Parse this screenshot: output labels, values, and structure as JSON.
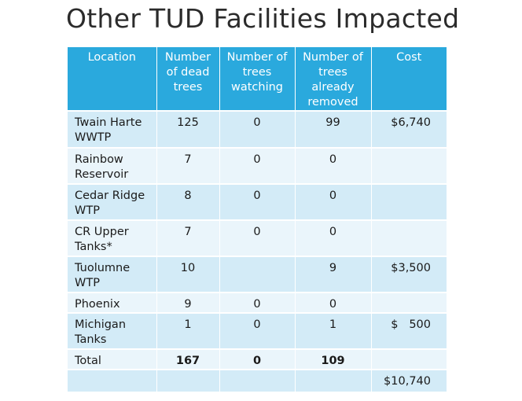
{
  "title": "Other TUD Facilities Impacted",
  "headers": [
    "Location",
    "Number of dead trees",
    "Number of trees watching",
    "Number of trees already removed",
    "Cost"
  ],
  "rows": [
    {
      "location": "Twain Harte WWTP",
      "dead": "125",
      "watching": "0",
      "removed": "99",
      "cost": "$6,740"
    },
    {
      "location": "Rainbow Reservoir",
      "dead": "7",
      "watching": "0",
      "removed": "0",
      "cost": ""
    },
    {
      "location": "Cedar Ridge WTP",
      "dead": "8",
      "watching": "0",
      "removed": "0",
      "cost": ""
    },
    {
      "location": "CR Upper Tanks*",
      "dead": "7",
      "watching": "0",
      "removed": "0",
      "cost": ""
    },
    {
      "location": "Tuolumne WTP",
      "dead": "10",
      "watching": "",
      "removed": "9",
      "cost": "$3,500"
    },
    {
      "location": "Phoenix",
      "dead": "9",
      "watching": "0",
      "removed": "0",
      "cost": ""
    },
    {
      "location": "Michigan Tanks",
      "dead": "1",
      "watching": "0",
      "removed": "1",
      "cost": "$   500"
    },
    {
      "location": "Total",
      "dead": "167",
      "watching": "0",
      "removed": "109",
      "cost": ""
    },
    {
      "location": "",
      "dead": "",
      "watching": "",
      "removed": "",
      "cost": "$10,740"
    }
  ],
  "colors": {
    "header_bg": "#2aa9dd",
    "row_dark": "#d3ebf7",
    "row_light": "#eaf5fb"
  }
}
